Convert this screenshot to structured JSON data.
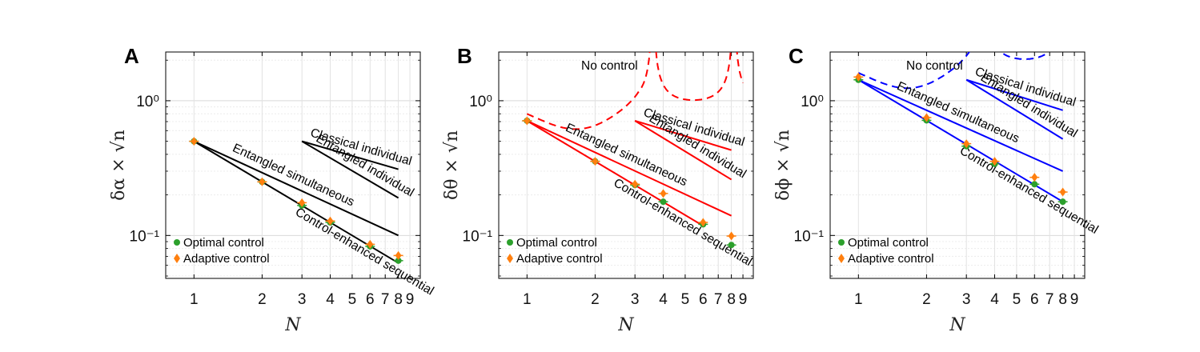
{
  "chart_data": [
    {
      "type": "line",
      "panel": "A",
      "xlabel": "N",
      "ylabel": "δα × √n",
      "xscale": "log",
      "yscale": "log",
      "xlim": [
        0.75,
        10
      ],
      "ylim": [
        0.048,
        2.3
      ],
      "xticks": [
        1,
        2,
        3,
        4,
        5,
        6,
        7,
        8,
        9
      ],
      "yticks": [
        {
          "value": 0.1,
          "label": "10⁻¹"
        },
        {
          "value": 1,
          "label": "10⁰"
        }
      ],
      "grid": true,
      "color": "#000000",
      "series": [
        {
          "name": "Control-enhanced sequential",
          "x": [
            1,
            8
          ],
          "y": [
            0.5,
            0.0625
          ]
        },
        {
          "name": "Entangled simultaneous",
          "x": [
            1,
            8
          ],
          "y": [
            0.5,
            0.1
          ]
        },
        {
          "name": "Entangled individual",
          "x": [
            3,
            8
          ],
          "y": [
            0.5,
            0.19
          ]
        },
        {
          "name": "Classical individual",
          "x": [
            3,
            8
          ],
          "y": [
            0.5,
            0.31
          ]
        }
      ],
      "legend": {
        "position": "bottom-left",
        "entries": [
          {
            "name": "Optimal control",
            "color": "#2ca02c",
            "marker": "circle"
          },
          {
            "name": "Adaptive control",
            "color": "#ff7f0e",
            "marker": "diamond"
          }
        ]
      },
      "points": [
        {
          "series": "Optimal control",
          "x": [
            1,
            2,
            3,
            4,
            6,
            8
          ],
          "y": [
            0.5,
            0.25,
            0.167,
            0.125,
            0.083,
            0.065
          ]
        },
        {
          "series": "Adaptive control",
          "x": [
            1,
            2,
            3,
            4,
            6,
            8
          ],
          "y": [
            0.5,
            0.25,
            0.175,
            0.128,
            0.086,
            0.071
          ]
        }
      ]
    },
    {
      "type": "line",
      "panel": "B",
      "xlabel": "N",
      "ylabel": "δθ × √n",
      "xscale": "log",
      "yscale": "log",
      "xlim": [
        0.75,
        10
      ],
      "ylim": [
        0.048,
        2.3
      ],
      "xticks": [
        1,
        2,
        3,
        4,
        5,
        6,
        7,
        8,
        9
      ],
      "yticks": [
        {
          "value": 0.1,
          "label": "10⁻¹"
        },
        {
          "value": 1,
          "label": "10⁰"
        }
      ],
      "grid": true,
      "color": "#ff0000",
      "annotation": "No control",
      "series": [
        {
          "name": "Control-enhanced sequential",
          "x": [
            1,
            6
          ],
          "y": [
            0.71,
            0.118
          ]
        },
        {
          "name": "Entangled simultaneous",
          "x": [
            1,
            8
          ],
          "y": [
            0.71,
            0.14
          ]
        },
        {
          "name": "Entangled individual",
          "x": [
            3,
            8
          ],
          "y": [
            0.71,
            0.26
          ]
        },
        {
          "name": "Classical individual",
          "x": [
            3,
            8
          ],
          "y": [
            0.71,
            0.43
          ]
        }
      ],
      "legend": {
        "position": "bottom-left",
        "entries": [
          {
            "name": "Optimal control",
            "color": "#2ca02c",
            "marker": "circle"
          },
          {
            "name": "Adaptive control",
            "color": "#ff7f0e",
            "marker": "diamond"
          }
        ]
      },
      "points": [
        {
          "series": "Optimal control",
          "x": [
            1,
            2,
            3,
            4,
            6,
            8
          ],
          "y": [
            0.71,
            0.355,
            0.237,
            0.178,
            0.121,
            0.085
          ]
        },
        {
          "series": "Adaptive control",
          "x": [
            1,
            2,
            3,
            4,
            6,
            8
          ],
          "y": [
            0.71,
            0.355,
            0.24,
            0.205,
            0.125,
            0.099
          ]
        }
      ]
    },
    {
      "type": "line",
      "panel": "C",
      "xlabel": "N",
      "ylabel": "δϕ × √n",
      "xscale": "log",
      "yscale": "log",
      "xlim": [
        0.75,
        10
      ],
      "ylim": [
        0.048,
        2.3
      ],
      "xticks": [
        1,
        2,
        3,
        4,
        5,
        6,
        7,
        8,
        9
      ],
      "yticks": [
        {
          "value": 0.1,
          "label": "10⁻¹"
        },
        {
          "value": 1,
          "label": "10⁰"
        }
      ],
      "grid": true,
      "color": "#0000ff",
      "annotation": "No control",
      "series": [
        {
          "name": "Control-enhanced sequential",
          "x": [
            1,
            8
          ],
          "y": [
            1.43,
            0.178
          ]
        },
        {
          "name": "Entangled simultaneous",
          "x": [
            1,
            8
          ],
          "y": [
            1.43,
            0.3
          ]
        },
        {
          "name": "Entangled individual",
          "x": [
            3,
            8
          ],
          "y": [
            1.43,
            0.52
          ]
        },
        {
          "name": "Classical individual",
          "x": [
            3,
            8
          ],
          "y": [
            1.43,
            0.85
          ]
        }
      ],
      "legend": {
        "position": "bottom-left",
        "entries": [
          {
            "name": "Optimal control",
            "color": "#2ca02c",
            "marker": "circle"
          },
          {
            "name": "Adaptive control",
            "color": "#ff7f0e",
            "marker": "diamond"
          }
        ]
      },
      "points": [
        {
          "series": "Optimal control",
          "x": [
            1,
            2,
            3,
            4,
            6,
            8
          ],
          "y": [
            1.43,
            0.715,
            0.46,
            0.34,
            0.24,
            0.178
          ]
        },
        {
          "series": "Adaptive control",
          "x": [
            1,
            2,
            3,
            4,
            6,
            8
          ],
          "y": [
            1.5,
            0.75,
            0.48,
            0.355,
            0.27,
            0.21
          ]
        }
      ]
    }
  ]
}
